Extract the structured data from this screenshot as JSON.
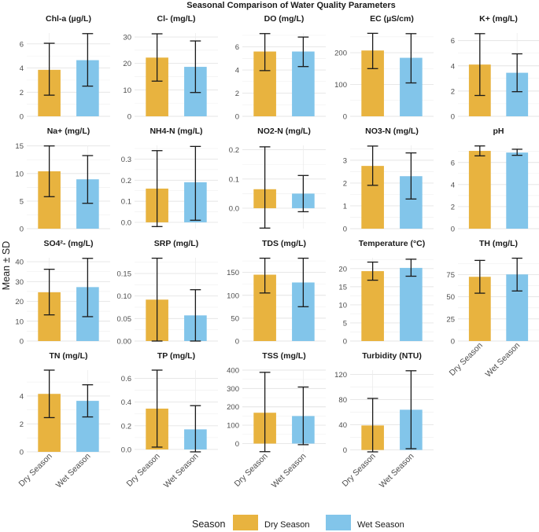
{
  "chart_data": {
    "type": "bar",
    "title": "Seasonal Comparison of Water Quality Parameters",
    "ylabel": "Mean ± SD",
    "categories": [
      "Dry Season",
      "Wet Season"
    ],
    "legend": {
      "title": "Season",
      "position": "bottom",
      "items": [
        {
          "label": "Dry Season",
          "color": "#E8B33F"
        },
        {
          "label": "Wet Season",
          "color": "#82C5EA"
        }
      ]
    },
    "panels": [
      {
        "title": "Chl-a (µg/L)",
        "ylim": [
          0,
          6.9
        ],
        "ticks": [
          0,
          2,
          4,
          6
        ],
        "tick_labels": [
          "0",
          "2",
          "4",
          "6"
        ],
        "means": [
          3.85,
          4.65
        ],
        "sd_low": [
          1.75,
          2.5
        ],
        "sd_high": [
          6.05,
          6.85
        ]
      },
      {
        "title": "Cl- (mg/L)",
        "ylim": [
          0,
          31.5
        ],
        "ticks": [
          0,
          10,
          20,
          30
        ],
        "tick_labels": [
          "0",
          "10",
          "20",
          "30"
        ],
        "means": [
          22.2,
          18.7
        ],
        "sd_low": [
          13.3,
          9.0
        ],
        "sd_high": [
          31.2,
          28.5
        ]
      },
      {
        "title": "DO (mg/L)",
        "ylim": [
          0,
          7.2
        ],
        "ticks": [
          0,
          2,
          4,
          6
        ],
        "tick_labels": [
          "0",
          "2",
          "4",
          "6"
        ],
        "means": [
          5.6,
          5.6
        ],
        "sd_low": [
          3.95,
          4.3
        ],
        "sd_high": [
          7.15,
          6.85
        ]
      },
      {
        "title": "EC (µS/cm)",
        "ylim": [
          0,
          262
        ],
        "ticks": [
          0,
          100,
          200
        ],
        "tick_labels": [
          "0",
          "100",
          "200"
        ],
        "means": [
          207,
          184
        ],
        "sd_low": [
          150,
          105
        ],
        "sd_high": [
          261,
          260
        ]
      },
      {
        "title": "K+ (mg/L)",
        "ylim": [
          0,
          6.6
        ],
        "ticks": [
          0,
          2,
          4,
          6
        ],
        "tick_labels": [
          "0",
          "2",
          "4",
          "6"
        ],
        "means": [
          4.1,
          3.45
        ],
        "sd_low": [
          1.65,
          1.95
        ],
        "sd_high": [
          6.55,
          4.95
        ]
      },
      {
        "title": "Na+ (mg/L)",
        "ylim": [
          0,
          15.1
        ],
        "ticks": [
          0,
          5,
          10,
          15
        ],
        "tick_labels": [
          "0",
          "5",
          "10",
          "15"
        ],
        "means": [
          10.4,
          8.95
        ],
        "sd_low": [
          5.8,
          4.6
        ],
        "sd_high": [
          15.0,
          13.25
        ]
      },
      {
        "title": "NH4-N (mg/L)",
        "ylim": [
          -0.03,
          0.365
        ],
        "ticks": [
          0,
          0.1,
          0.2,
          0.3
        ],
        "tick_labels": [
          "0.0",
          "0.1",
          "0.2",
          "0.3"
        ],
        "means": [
          0.16,
          0.19
        ],
        "sd_low": [
          -0.02,
          0.01
        ],
        "sd_high": [
          0.34,
          0.36
        ]
      },
      {
        "title": "NO2-N (mg/L)",
        "ylim": [
          -0.07,
          0.215
        ],
        "ticks": [
          0,
          0.1,
          0.2
        ],
        "tick_labels": [
          "0.0",
          "0.1",
          "0.2"
        ],
        "means": [
          0.065,
          0.05
        ],
        "sd_low": [
          -0.068,
          -0.012
        ],
        "sd_high": [
          0.21,
          0.112
        ]
      },
      {
        "title": "NO3-N (mg/L)",
        "ylim": [
          0,
          3.65
        ],
        "ticks": [
          0,
          1,
          2,
          3
        ],
        "tick_labels": [
          "0",
          "1",
          "2",
          "3"
        ],
        "means": [
          2.75,
          2.3
        ],
        "sd_low": [
          1.9,
          1.3
        ],
        "sd_high": [
          3.62,
          3.32
        ]
      },
      {
        "title": "pH",
        "ylim": [
          0,
          7.55
        ],
        "ticks": [
          0,
          2,
          4,
          6
        ],
        "tick_labels": [
          "0",
          "2",
          "4",
          "6"
        ],
        "means": [
          7.05,
          6.9
        ],
        "sd_low": [
          6.6,
          6.65
        ],
        "sd_high": [
          7.5,
          7.2
        ]
      },
      {
        "title": "SO4²- (mg/L)",
        "ylim": [
          0,
          42
        ],
        "ticks": [
          0,
          10,
          20,
          30,
          40
        ],
        "tick_labels": [
          "0",
          "10",
          "20",
          "30",
          "40"
        ],
        "means": [
          24.6,
          27.2
        ],
        "sd_low": [
          13.2,
          12.3
        ],
        "sd_high": [
          36.2,
          41.7
        ]
      },
      {
        "title": "SRP (mg/L)",
        "ylim": [
          0,
          0.185
        ],
        "ticks": [
          0,
          0.05,
          0.1,
          0.15
        ],
        "tick_labels": [
          "0.00",
          "0.05",
          "0.10",
          "0.15"
        ],
        "means": [
          0.092,
          0.057
        ],
        "sd_low": [
          0.0,
          0.0
        ],
        "sd_high": [
          0.184,
          0.114
        ]
      },
      {
        "title": "TDS (mg/L)",
        "ylim": [
          0,
          182
        ],
        "ticks": [
          0,
          50,
          100,
          150
        ],
        "tick_labels": [
          "0",
          "50",
          "100",
          "150"
        ],
        "means": [
          145,
          128
        ],
        "sd_low": [
          105,
          75
        ],
        "sd_high": [
          181,
          181
        ]
      },
      {
        "title": "Temperature (°C)",
        "ylim": [
          0,
          23
        ],
        "ticks": [
          0,
          5,
          10,
          15,
          20
        ],
        "tick_labels": [
          "0",
          "5",
          "10",
          "15",
          "20"
        ],
        "means": [
          19.3,
          20.2
        ],
        "sd_low": [
          16.8,
          17.9
        ],
        "sd_high": [
          21.8,
          22.6
        ]
      },
      {
        "title": "TH (mg/L)",
        "ylim": [
          0,
          94
        ],
        "ticks": [
          0,
          25,
          50,
          75
        ],
        "tick_labels": [
          "0",
          "25",
          "50",
          "75"
        ],
        "means": [
          72.5,
          75.2
        ],
        "sd_low": [
          54,
          56.5
        ],
        "sd_high": [
          91,
          93.5
        ]
      },
      {
        "title": "TN (mg/L)",
        "ylim": [
          0,
          5.85
        ],
        "ticks": [
          0,
          2,
          4
        ],
        "tick_labels": [
          "0",
          "2",
          "4"
        ],
        "means": [
          4.15,
          3.65
        ],
        "sd_low": [
          2.45,
          2.5
        ],
        "sd_high": [
          5.85,
          4.8
        ]
      },
      {
        "title": "TP (mg/L)",
        "ylim": [
          -0.02,
          0.67
        ],
        "ticks": [
          0,
          0.2,
          0.4,
          0.6
        ],
        "tick_labels": [
          "0.0",
          "0.2",
          "0.4",
          "0.6"
        ],
        "means": [
          0.345,
          0.17
        ],
        "sd_low": [
          0.02,
          -0.02
        ],
        "sd_high": [
          0.67,
          0.37
        ]
      },
      {
        "title": "TSS (mg/L)",
        "ylim": [
          -45,
          400
        ],
        "ticks": [
          0,
          100,
          200,
          300,
          400
        ],
        "tick_labels": [
          "0",
          "100",
          "200",
          "300",
          "400"
        ],
        "means": [
          168,
          150
        ],
        "sd_low": [
          -44,
          -6
        ],
        "sd_high": [
          388,
          308
        ]
      },
      {
        "title": "Turbidity (NTU)",
        "ylim": [
          -3,
          127
        ],
        "ticks": [
          0,
          40,
          80,
          120
        ],
        "tick_labels": [
          "0",
          "40",
          "80",
          "120"
        ],
        "means": [
          39,
          64
        ],
        "sd_low": [
          -3,
          2
        ],
        "sd_high": [
          82,
          126
        ]
      }
    ]
  }
}
